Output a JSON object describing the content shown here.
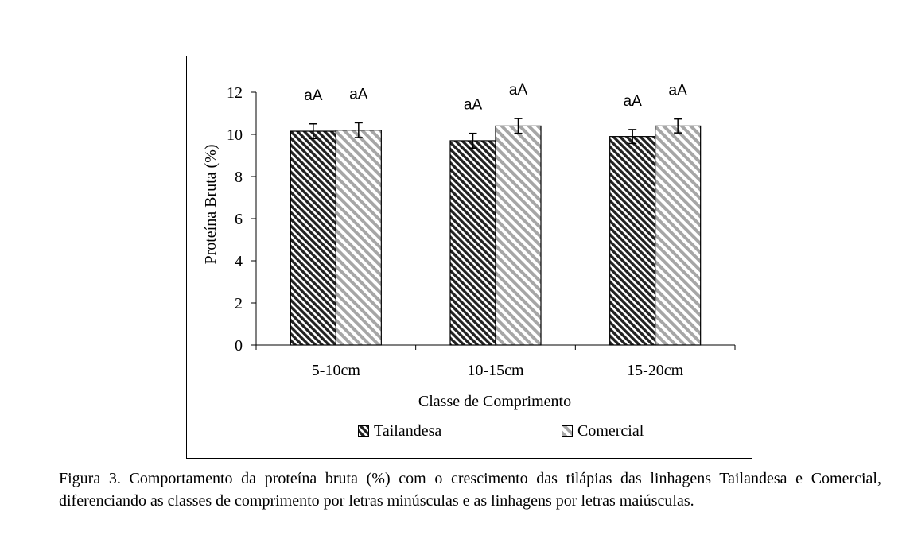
{
  "chart_data": {
    "type": "bar",
    "title": "",
    "xlabel": "Classe de Comprimento",
    "ylabel": "Proteína Bruta (%)",
    "ylim": [
      0,
      12
    ],
    "yticks": [
      0,
      2,
      4,
      6,
      8,
      10,
      12
    ],
    "grid": false,
    "legend_position": "bottom",
    "categories": [
      "5-10cm",
      "10-15cm",
      "15-20cm"
    ],
    "series": [
      {
        "name": "Tailandesa",
        "values": [
          10.15,
          9.7,
          9.9
        ],
        "errors": [
          0.35,
          0.35,
          0.33
        ],
        "labels": [
          "aA",
          "aA",
          "aA"
        ],
        "color": "#2b2b2b"
      },
      {
        "name": "Comercial",
        "values": [
          10.2,
          10.4,
          10.4
        ],
        "errors": [
          0.35,
          0.35,
          0.33
        ],
        "labels": [
          "aA",
          "aA",
          "aA"
        ],
        "color": "#a8a8a8"
      }
    ]
  },
  "caption": "Figura 3. Comportamento da proteína bruta (%) com o crescimento das tilápias das linhagens Tailandesa e Comercial, diferenciando as classes de comprimento por letras minúsculas e as linhagens por letras maiúsculas."
}
